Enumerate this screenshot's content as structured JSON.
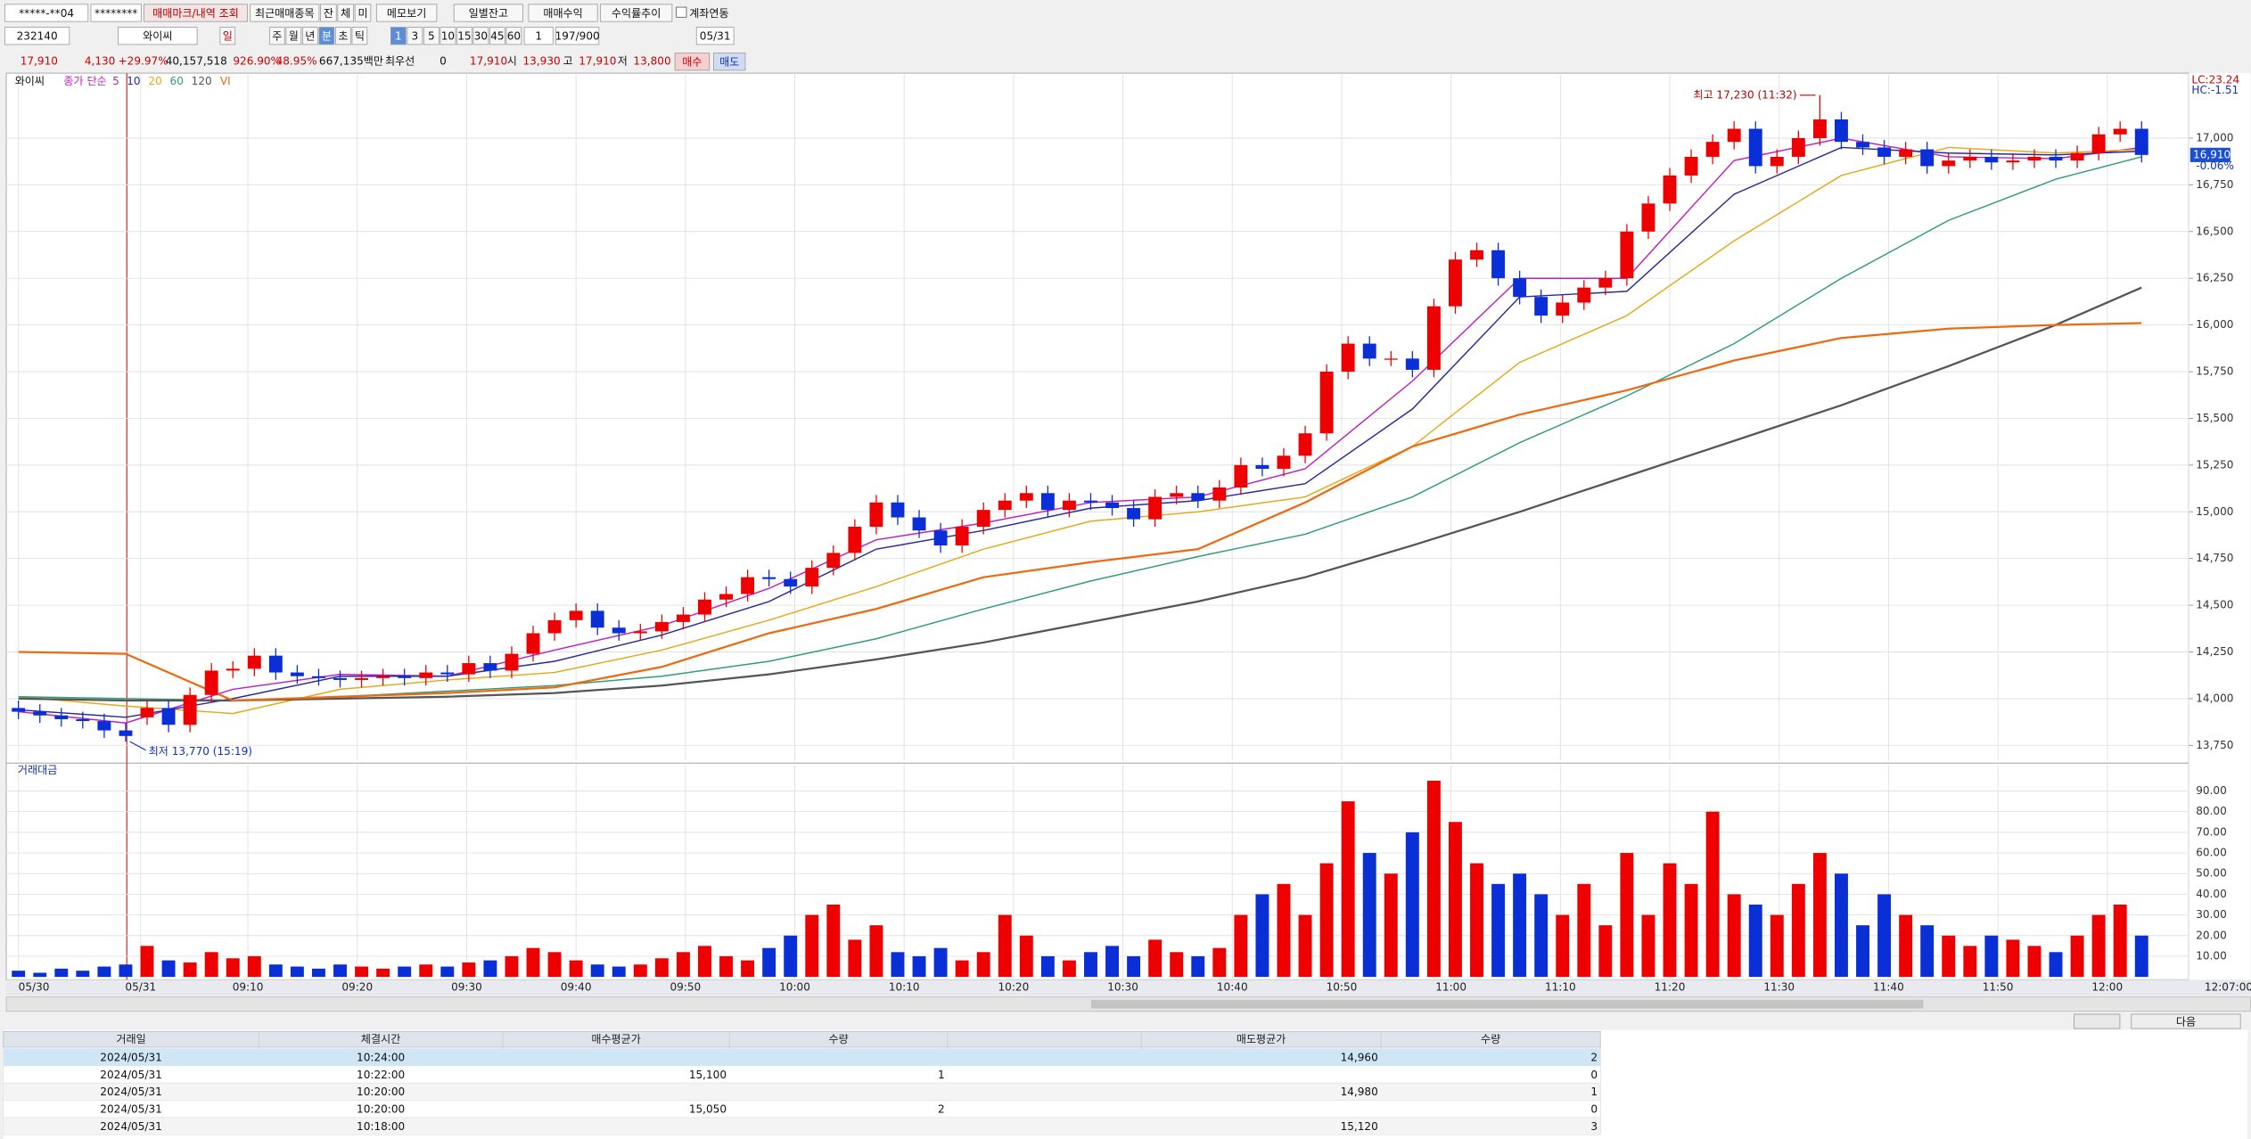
{
  "toolbar": {
    "account": "*****-**04",
    "password": "********",
    "buttons": [
      "매매마크/내역 조회",
      "최근매매종목",
      "잔",
      "체",
      "미",
      "메모보기",
      "일별잔고",
      "매매수익",
      "수익률추이"
    ],
    "link": "계좌연동"
  },
  "controls": {
    "code": "232140",
    "name": "와이씨",
    "periods": [
      "일",
      "주",
      "월",
      "년",
      "분",
      "초",
      "틱"
    ],
    "intervals": [
      "1",
      "3",
      "5",
      "10",
      "15",
      "30",
      "45",
      "60"
    ],
    "count": "1",
    "range": "197/900",
    "date": "05/31"
  },
  "quote": {
    "price": "17,910",
    "change": "4,130",
    "rate": "+29.97%",
    "volume": "40,157,518",
    "vol_ratio": "926.90%",
    "turnover": "48.95%",
    "amount": "667,135백만",
    "best": "최우선",
    "best_qty": "0",
    "best_price": "17,910",
    "open_label": "시",
    "open": "13,930",
    "high_label": "고",
    "high": "17,910",
    "low_label": "저",
    "low": "13,800",
    "buy": "매수",
    "sell": "매도"
  },
  "chart_data": {
    "type": "candlestick",
    "name_label": "와이씨",
    "ma_label": "종가 단순",
    "up_color": "#ee0000",
    "down_color": "#0a2fd6",
    "open": [
      13950,
      13930,
      13910,
      13890,
      13880,
      13830,
      13900,
      13950,
      13860,
      14020,
      14150,
      14160,
      14230,
      14140,
      14120,
      14110,
      14100,
      14110,
      14120,
      14110,
      14140,
      14130,
      14190,
      14150,
      14240,
      14350,
      14420,
      14470,
      14380,
      14350,
      14360,
      14410,
      14450,
      14530,
      14560,
      14650,
      14640,
      14600,
      14700,
      14780,
      14920,
      15050,
      14970,
      14900,
      14820,
      14920,
      15010,
      15060,
      15100,
      15010,
      15060,
      15050,
      15020,
      14960,
      15080,
      15100,
      15060,
      15130,
      15250,
      15230,
      15300,
      15420,
      15750,
      15900,
      15820,
      15820,
      15760,
      16100,
      16350,
      16400,
      16250,
      16150,
      16050,
      16120,
      16200,
      16250,
      16500,
      16650,
      16800,
      16900,
      16980,
      17050,
      16850,
      16900,
      17000,
      17100,
      16980,
      16950,
      16900,
      16940,
      16850,
      16880,
      16900,
      16870,
      16880,
      16900,
      16880,
      16920,
      17020,
      17050
    ],
    "high": [
      13990,
      13970,
      13950,
      13930,
      13920,
      13870,
      13990,
      13990,
      14060,
      14190,
      14200,
      14270,
      14270,
      14180,
      14160,
      14150,
      14150,
      14160,
      14160,
      14180,
      14180,
      14230,
      14230,
      14280,
      14390,
      14460,
      14510,
      14510,
      14420,
      14400,
      14450,
      14490,
      14570,
      14600,
      14690,
      14690,
      14680,
      14740,
      14820,
      14960,
      15090,
      15090,
      15010,
      14940,
      14960,
      15050,
      15100,
      15140,
      15140,
      15100,
      15100,
      15090,
      15060,
      15120,
      15140,
      15140,
      15170,
      15290,
      15290,
      15340,
      15460,
      15790,
      15940,
      15940,
      15860,
      15860,
      16140,
      16390,
      16440,
      16440,
      16290,
      16190,
      16160,
      16240,
      16290,
      16540,
      16690,
      16840,
      16940,
      17020,
      17090,
      17090,
      16940,
      17040,
      17230,
      17140,
      17020,
      16990,
      16980,
      16980,
      16920,
      16940,
      16940,
      16920,
      16940,
      16940,
      16960,
      17060,
      17090,
      17090
    ],
    "low": [
      13890,
      13870,
      13850,
      13840,
      13790,
      13770,
      13860,
      13820,
      13820,
      13980,
      14110,
      14120,
      14100,
      14080,
      14070,
      14060,
      14060,
      14070,
      14070,
      14070,
      14090,
      14090,
      14110,
      14110,
      14200,
      14310,
      14380,
      14340,
      14310,
      14310,
      14320,
      14370,
      14410,
      14490,
      14520,
      14600,
      14560,
      14560,
      14660,
      14740,
      14880,
      14930,
      14860,
      14780,
      14780,
      14880,
      14970,
      15020,
      14970,
      14970,
      15010,
      14980,
      14920,
      14920,
      15040,
      15020,
      15020,
      15090,
      15190,
      15190,
      15260,
      15380,
      15710,
      15780,
      15780,
      15720,
      15720,
      16060,
      16310,
      16210,
      16110,
      16010,
      16010,
      16080,
      16160,
      16210,
      16460,
      16610,
      16760,
      16860,
      16940,
      16810,
      16810,
      16860,
      16960,
      16940,
      16910,
      16860,
      16860,
      16810,
      16810,
      16840,
      16830,
      16830,
      16840,
      16840,
      16840,
      16880,
      16980,
      16870
    ],
    "close": [
      13930,
      13910,
      13890,
      13880,
      13830,
      13800,
      13950,
      13860,
      14020,
      14150,
      14160,
      14230,
      14140,
      14120,
      14110,
      14100,
      14110,
      14120,
      14110,
      14140,
      14130,
      14190,
      14150,
      14240,
      14350,
      14420,
      14470,
      14380,
      14350,
      14360,
      14410,
      14450,
      14530,
      14560,
      14650,
      14640,
      14600,
      14700,
      14780,
      14920,
      15050,
      14970,
      14900,
      14820,
      14920,
      15010,
      15060,
      15100,
      15010,
      15060,
      15050,
      15020,
      14960,
      15080,
      15100,
      15060,
      15130,
      15250,
      15230,
      15300,
      15420,
      15750,
      15900,
      15820,
      15820,
      15760,
      16100,
      16350,
      16400,
      16250,
      16150,
      16050,
      16120,
      16200,
      16250,
      16500,
      16650,
      16800,
      16900,
      16980,
      17050,
      16850,
      16900,
      17000,
      17100,
      16980,
      16950,
      16900,
      16940,
      16850,
      16880,
      16900,
      16870,
      16880,
      16900,
      16880,
      16920,
      17020,
      17050,
      16910
    ],
    "xlim": [
      -0.5,
      101
    ],
    "xticks": [
      {
        "value": 0,
        "label": "05/30"
      },
      {
        "value": 5.7,
        "label": "05/31"
      },
      {
        "value": 10.7,
        "label": "09:10"
      },
      {
        "value": 15.8,
        "label": "09:20"
      },
      {
        "value": 20.9,
        "label": "09:30"
      },
      {
        "value": 26,
        "label": "09:40"
      },
      {
        "value": 31.1,
        "label": "09:50"
      },
      {
        "value": 36.2,
        "label": "10:00"
      },
      {
        "value": 41.3,
        "label": "10:10"
      },
      {
        "value": 46.4,
        "label": "10:20"
      },
      {
        "value": 51.5,
        "label": "10:30"
      },
      {
        "value": 56.6,
        "label": "10:40"
      },
      {
        "value": 61.7,
        "label": "10:50"
      },
      {
        "value": 66.8,
        "label": "11:00"
      },
      {
        "value": 71.9,
        "label": "11:10"
      },
      {
        "value": 77,
        "label": "11:20"
      },
      {
        "value": 82.1,
        "label": "11:30"
      },
      {
        "value": 87.2,
        "label": "11:40"
      },
      {
        "value": 92.3,
        "label": "11:50"
      },
      {
        "value": 97.4,
        "label": "12:00"
      },
      {
        "value": 101,
        "label": "12:07:00"
      }
    ],
    "ylim": [
      13670,
      17340
    ],
    "yticks": [
      {
        "value": 13750,
        "label": "13,750"
      },
      {
        "value": 14000,
        "label": "14,000"
      },
      {
        "value": 14250,
        "label": "14,250"
      },
      {
        "value": 14500,
        "label": "14,500"
      },
      {
        "value": 14750,
        "label": "14,750"
      },
      {
        "value": 15000,
        "label": "15,000"
      },
      {
        "value": 15250,
        "label": "15,250"
      },
      {
        "value": 15500,
        "label": "15,500"
      },
      {
        "value": 15750,
        "label": "15,750"
      },
      {
        "value": 16000,
        "label": "16,000"
      },
      {
        "value": 16250,
        "label": "16,250"
      },
      {
        "value": 16500,
        "label": "16,500"
      },
      {
        "value": 16750,
        "label": "16,750"
      },
      {
        "value": 17000,
        "label": "17,000"
      }
    ],
    "grid": true,
    "ma_x": [
      0,
      5,
      10,
      15,
      20,
      25,
      30,
      35,
      40,
      45,
      50,
      55,
      60,
      65,
      70,
      75,
      80,
      85,
      90,
      95,
      99
    ],
    "series": [
      {
        "name": "5",
        "color": "#c020c0",
        "values": [
          13930,
          13870,
          14050,
          14130,
          14120,
          14260,
          14390,
          14590,
          14850,
          14940,
          15050,
          15080,
          15230,
          15700,
          16250,
          16250,
          16880,
          17000,
          16900,
          16890,
          16950
        ]
      },
      {
        "name": "10",
        "color": "#2a2a9a",
        "values": [
          13940,
          13900,
          14000,
          14120,
          14120,
          14200,
          14340,
          14520,
          14800,
          14900,
          15020,
          15060,
          15150,
          15550,
          16150,
          16180,
          16700,
          16950,
          16920,
          16910,
          16930
        ]
      },
      {
        "name": "20",
        "color": "#e6a817",
        "values": [
          14010,
          13960,
          13920,
          14050,
          14100,
          14140,
          14260,
          14420,
          14600,
          14800,
          14950,
          15000,
          15080,
          15350,
          15800,
          16050,
          16450,
          16800,
          16950,
          16920,
          16940
        ]
      },
      {
        "name": "60",
        "color": "#2e9c7a",
        "values": [
          14010,
          14000,
          13990,
          14010,
          14040,
          14070,
          14120,
          14200,
          14320,
          14480,
          14630,
          14760,
          14880,
          15080,
          15370,
          15620,
          15900,
          16250,
          16560,
          16780,
          16900
        ]
      },
      {
        "name": "120",
        "color": "#555555",
        "values": [
          14000,
          13990,
          13990,
          14000,
          14010,
          14030,
          14070,
          14130,
          14210,
          14300,
          14410,
          14520,
          14650,
          14820,
          15000,
          15190,
          15380,
          15570,
          15780,
          16000,
          16200
        ]
      },
      {
        "name": "VI",
        "color": "#ee6a10",
        "values": [
          14250,
          14240,
          13990,
          14010,
          14030,
          14060,
          14170,
          14350,
          14480,
          14650,
          14730,
          14800,
          15050,
          15350,
          15520,
          15650,
          15810,
          15930,
          15980,
          16000,
          16010
        ]
      }
    ],
    "annotations": [
      {
        "text": "최고 17,230 (11:32)"
      },
      {
        "text": "최저 13,770 (15:19)"
      }
    ],
    "right_labels": {
      "lc": "LC:23.24",
      "hc": "HC:-1.51"
    },
    "last_label": "16,910",
    "last_change": "-0.06%",
    "volume": {
      "title": "거래대금",
      "values": [
        3,
        2,
        4,
        3,
        5,
        6,
        15,
        8,
        7,
        12,
        9,
        10,
        6,
        5,
        4,
        6,
        5,
        4,
        5,
        6,
        5,
        7,
        8,
        10,
        14,
        12,
        8,
        6,
        5,
        6,
        9,
        12,
        15,
        10,
        8,
        14,
        20,
        30,
        35,
        18,
        25,
        12,
        10,
        14,
        8,
        12,
        30,
        20,
        10,
        8,
        12,
        15,
        10,
        18,
        12,
        10,
        14,
        30,
        40,
        45,
        30,
        55,
        85,
        60,
        50,
        70,
        95,
        75,
        55,
        45,
        50,
        40,
        30,
        45,
        25,
        60,
        30,
        55,
        45,
        80,
        40,
        35,
        30,
        45,
        60,
        50,
        25,
        40,
        30,
        25,
        20,
        15,
        20,
        18,
        15,
        12,
        20,
        30,
        35,
        20
      ],
      "ylim": [
        0,
        100
      ],
      "yticks": [
        {
          "value": 10,
          "label": "10.00"
        },
        {
          "value": 20,
          "label": "20.00"
        },
        {
          "value": 30,
          "label": "30.00"
        },
        {
          "value": 40,
          "label": "40.00"
        },
        {
          "value": 50,
          "label": "50.00"
        },
        {
          "value": 60,
          "label": "60.00"
        },
        {
          "value": 70,
          "label": "70.00"
        },
        {
          "value": 80,
          "label": "80.00"
        },
        {
          "value": 90,
          "label": "90.00"
        }
      ]
    }
  },
  "footer": {
    "next": "다음"
  },
  "table": {
    "headers": [
      "거래일",
      "체결시간",
      "매수평균가",
      "수량",
      "매도평균가",
      "수량"
    ],
    "rows": [
      [
        "2024/05/31",
        "10:24:00",
        null,
        null,
        "14,960",
        "2"
      ],
      [
        "2024/05/31",
        "10:22:00",
        "15,100",
        "1",
        null,
        "0"
      ],
      [
        "2024/05/31",
        "10:20:00",
        null,
        null,
        "14,980",
        "1"
      ],
      [
        "2024/05/31",
        "10:20:00",
        "15,050",
        "2",
        null,
        "0"
      ],
      [
        "2024/05/31",
        "10:18:00",
        null,
        null,
        "15,120",
        "3"
      ]
    ]
  }
}
